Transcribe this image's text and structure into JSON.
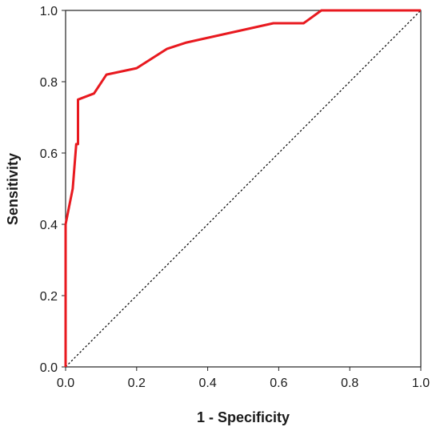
{
  "chart_data": {
    "type": "line",
    "title": "",
    "xlabel": "1 - Specificity",
    "ylabel": "Sensitivity",
    "xlim": [
      0,
      1
    ],
    "ylim": [
      0,
      1
    ],
    "x_ticks": [
      "0.0",
      "0.2",
      "0.4",
      "0.6",
      "0.8",
      "1.0"
    ],
    "y_ticks": [
      "0.0",
      "0.2",
      "0.4",
      "0.6",
      "0.8",
      "1.0"
    ],
    "grid": false,
    "legend": "none",
    "series": [
      {
        "color": "#e8191f",
        "style": "solid",
        "x": [
          0,
          0,
          0.01,
          0.02,
          0.03,
          0.035,
          0.035,
          0.08,
          0.115,
          0.2,
          0.285,
          0.34,
          0.585,
          0.67,
          0.72,
          1.0
        ],
        "y": [
          0,
          0.4,
          0.45,
          0.5,
          0.625,
          0.625,
          0.75,
          0.767,
          0.82,
          0.838,
          0.892,
          0.91,
          0.964,
          0.964,
          1.0,
          1.0
        ]
      },
      {
        "color": "#000000",
        "style": "dotted",
        "x": [
          0,
          1
        ],
        "y": [
          0,
          1
        ]
      }
    ]
  }
}
